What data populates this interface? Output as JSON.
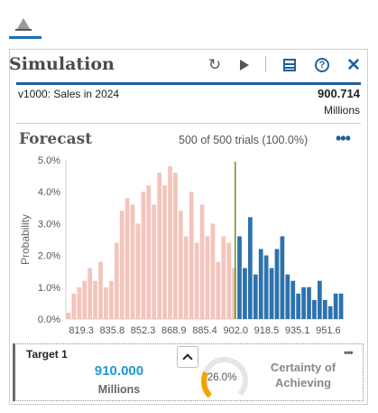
{
  "app": {
    "tab_icon": "chart-triangle-icon"
  },
  "simulation": {
    "title": "Simulation",
    "toolbar": {
      "refresh_icon": "refresh-icon",
      "run_icon": "play-icon",
      "list_icon": "list-view-icon",
      "help_icon": "help-icon",
      "close_icon": "close-icon",
      "close_glyph": "✕",
      "refresh_glyph": "↻",
      "help_glyph": "?"
    },
    "forecast_name": "v1000: Sales in 2024",
    "forecast_value": "900.714",
    "forecast_unit": "Millions"
  },
  "forecast": {
    "title": "Forecast",
    "trials": "500 of 500 trials (100.0%)",
    "more_label": "•••",
    "chart_data": {
      "type": "bar",
      "ylabel": "Probability",
      "ylim": [
        0,
        5
      ],
      "yticks": [
        "0.0%",
        "1.0%",
        "2.0%",
        "3.0%",
        "4.0%",
        "5.0%"
      ],
      "xticks": [
        "819.3",
        "835.8",
        "852.3",
        "868.9",
        "885.4",
        "902.0",
        "918.5",
        "935.1",
        "951.6"
      ],
      "x_range": [
        819.3,
        968.1
      ],
      "threshold": 910.0,
      "colors": {
        "below": "#f4c4bb",
        "above": "#2d72ad",
        "threshold_line": "#6a8e23"
      },
      "values": [
        0.2,
        0.8,
        1.0,
        1.2,
        1.6,
        1.2,
        1.8,
        1.0,
        1.2,
        2.4,
        3.4,
        3.8,
        3.6,
        3.0,
        4.0,
        4.2,
        3.6,
        4.6,
        4.2,
        4.8,
        4.6,
        3.4,
        2.6,
        4.0,
        2.4,
        3.6,
        2.6,
        3.0,
        1.8,
        2.6,
        2.4,
        1.6,
        2.6,
        1.6,
        3.2,
        1.4,
        2.2,
        2.0,
        1.6,
        2.2,
        2.6,
        1.4,
        1.2,
        0.8,
        1.0,
        1.0,
        0.6,
        1.2,
        0.6,
        0.4,
        0.8,
        0.8
      ]
    }
  },
  "target": {
    "label": "Target 1",
    "value": "910.000",
    "unit": "Millions",
    "certainty_percent": "26.0%",
    "certainty_fraction": 0.26,
    "certainty_label": "Certainty of Achieving",
    "certainty_color": "#f5a300",
    "more_label": "•••"
  }
}
